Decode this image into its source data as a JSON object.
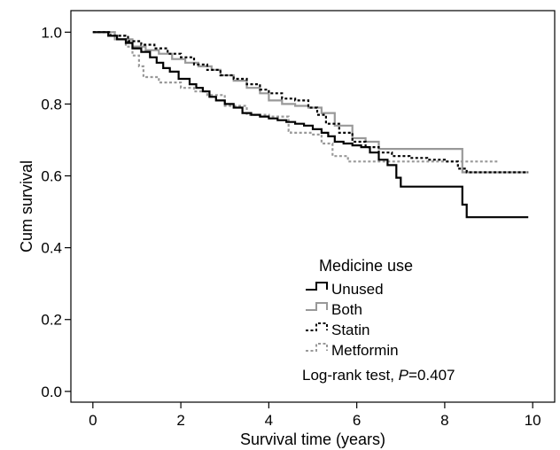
{
  "chart_data": {
    "type": "line",
    "subtype": "kaplan-meier step",
    "xlabel": "Survival time (years)",
    "ylabel": "Cum survival",
    "xlim": [
      -0.5,
      10.5
    ],
    "ylim": [
      -0.03,
      1.06
    ],
    "xticks": [
      0,
      2,
      4,
      6,
      8,
      10
    ],
    "yticks": [
      {
        "value": 0.0,
        "label": "0.0"
      },
      {
        "value": 0.2,
        "label": "0.2"
      },
      {
        "value": 0.4,
        "label": "0.4"
      },
      {
        "value": 0.6,
        "label": "0.6"
      },
      {
        "value": 0.8,
        "label": "0.8"
      },
      {
        "value": 1.0,
        "label": "1.0"
      }
    ],
    "grid": false,
    "legend": {
      "title": "Medicine use",
      "placement": "lower-right"
    },
    "annotation": {
      "prefix": "Log-rank test, ",
      "p_symbol": "P",
      "value": "=0.407"
    },
    "series": [
      {
        "name": "Unused",
        "color": "#000000",
        "dash": "solid",
        "width": 2.2,
        "x": [
          0,
          0.35,
          0.55,
          0.75,
          0.9,
          1.1,
          1.3,
          1.45,
          1.6,
          1.75,
          1.95,
          2.2,
          2.35,
          2.5,
          2.65,
          2.8,
          3.0,
          3.2,
          3.4,
          3.6,
          3.8,
          4.0,
          4.2,
          4.4,
          4.6,
          4.8,
          5.0,
          5.2,
          5.35,
          5.5,
          5.7,
          5.9,
          6.1,
          6.3,
          6.5,
          6.7,
          6.9,
          7.0,
          7.4,
          7.7,
          8.0,
          8.4,
          8.5,
          9.9
        ],
        "y": [
          1.0,
          0.99,
          0.98,
          0.97,
          0.955,
          0.945,
          0.93,
          0.915,
          0.9,
          0.89,
          0.87,
          0.855,
          0.845,
          0.835,
          0.82,
          0.81,
          0.8,
          0.79,
          0.775,
          0.77,
          0.765,
          0.76,
          0.755,
          0.75,
          0.745,
          0.74,
          0.73,
          0.72,
          0.71,
          0.695,
          0.69,
          0.685,
          0.68,
          0.665,
          0.645,
          0.63,
          0.595,
          0.57,
          0.57,
          0.57,
          0.57,
          0.52,
          0.485,
          0.485
        ]
      },
      {
        "name": "Both",
        "color": "#999999",
        "dash": "solid",
        "width": 2.2,
        "x": [
          0,
          0.5,
          0.9,
          1.2,
          1.5,
          1.8,
          2.1,
          2.4,
          2.7,
          2.9,
          3.2,
          3.5,
          3.8,
          4.0,
          4.3,
          4.6,
          4.9,
          5.2,
          5.5,
          5.9,
          6.2,
          6.5,
          7.0,
          7.5,
          8.0,
          8.3,
          8.4,
          9.9
        ],
        "y": [
          1.0,
          0.98,
          0.96,
          0.95,
          0.94,
          0.925,
          0.915,
          0.905,
          0.895,
          0.88,
          0.865,
          0.845,
          0.83,
          0.81,
          0.8,
          0.795,
          0.79,
          0.775,
          0.74,
          0.705,
          0.695,
          0.675,
          0.675,
          0.675,
          0.675,
          0.675,
          0.61,
          0.61
        ]
      },
      {
        "name": "Statin",
        "color": "#000000",
        "dash": "dotted",
        "width": 2.2,
        "x": [
          0,
          0.4,
          0.8,
          1.1,
          1.4,
          1.7,
          2.0,
          2.3,
          2.6,
          2.9,
          3.2,
          3.5,
          3.8,
          4.0,
          4.3,
          4.6,
          4.9,
          5.1,
          5.3,
          5.6,
          5.9,
          6.2,
          6.5,
          6.8,
          7.2,
          7.6,
          8.0,
          8.3,
          8.5,
          9.9
        ],
        "y": [
          1.0,
          0.99,
          0.975,
          0.965,
          0.955,
          0.94,
          0.93,
          0.91,
          0.895,
          0.88,
          0.87,
          0.855,
          0.84,
          0.83,
          0.815,
          0.81,
          0.79,
          0.77,
          0.745,
          0.72,
          0.695,
          0.68,
          0.665,
          0.655,
          0.65,
          0.645,
          0.64,
          0.62,
          0.61,
          0.61
        ]
      },
      {
        "name": "Metformin",
        "color": "#999999",
        "dash": "dotted",
        "width": 2.2,
        "x": [
          0,
          0.5,
          0.75,
          0.9,
          1.05,
          1.15,
          1.5,
          2.0,
          2.3,
          2.6,
          3.0,
          3.5,
          4.0,
          4.45,
          4.5,
          4.95,
          5.2,
          5.45,
          5.8,
          6.3,
          7.2,
          8.0,
          8.6,
          9.2
        ],
        "y": [
          1.0,
          0.99,
          0.96,
          0.935,
          0.905,
          0.875,
          0.86,
          0.845,
          0.835,
          0.825,
          0.795,
          0.77,
          0.765,
          0.725,
          0.72,
          0.715,
          0.69,
          0.655,
          0.64,
          0.64,
          0.64,
          0.64,
          0.64,
          0.64
        ]
      }
    ]
  }
}
